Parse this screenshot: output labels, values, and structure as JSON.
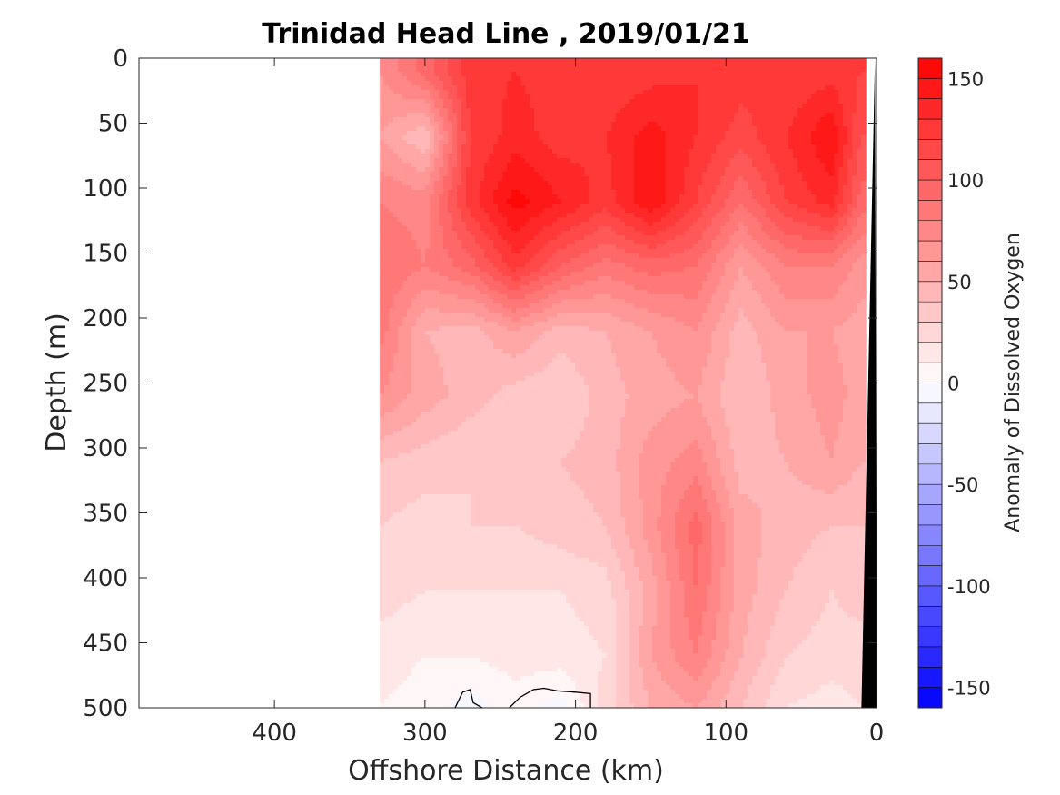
{
  "chart_data": {
    "type": "heatmap",
    "subtype": "filled-contour section",
    "title": "Trinidad Head Line , 2019/01/21",
    "xlabel": "Offshore Distance (km)",
    "ylabel": "Depth (m)",
    "xlim": [
      490,
      0
    ],
    "x_reversed": true,
    "ylim": [
      0,
      500
    ],
    "y_reversed": true,
    "x_ticks": [
      400,
      300,
      200,
      100,
      0
    ],
    "y_ticks": [
      0,
      50,
      100,
      150,
      200,
      250,
      300,
      350,
      400,
      450,
      500
    ],
    "colorbar": {
      "label": "Anomaly of Dissolved Oxygen",
      "range": [
        -160,
        160
      ],
      "level_step": 10,
      "ticks": [
        -150,
        -100,
        -50,
        0,
        50,
        100,
        150
      ],
      "colormap": "blue-white-red",
      "low_color": "#0000ff",
      "mid_color": "#ffffff",
      "high_color": "#ff0000"
    },
    "data_extent_x_km": [
      330,
      10
    ],
    "bathymetry_color": "#000000",
    "bathymetry": {
      "distance_km": [
        10,
        1,
        0
      ],
      "depth_m": [
        500,
        0,
        500
      ]
    },
    "grid_x_km": [
      330,
      300,
      270,
      240,
      210,
      180,
      150,
      120,
      90,
      60,
      30,
      10
    ],
    "grid_depth_m": [
      10,
      60,
      110,
      160,
      210,
      260,
      310,
      360,
      410,
      460,
      500
    ],
    "anomaly_grid": [
      [
        70,
        95,
        125,
        130,
        125,
        120,
        125,
        130,
        125,
        120,
        125,
        120
      ],
      [
        60,
        40,
        120,
        135,
        125,
        130,
        145,
        130,
        115,
        130,
        150,
        110
      ],
      [
        80,
        75,
        125,
        155,
        140,
        125,
        150,
        120,
        90,
        120,
        135,
        95
      ],
      [
        90,
        80,
        95,
        125,
        100,
        85,
        95,
        90,
        60,
        80,
        80,
        65
      ],
      [
        85,
        50,
        45,
        60,
        45,
        50,
        60,
        70,
        45,
        60,
        60,
        55
      ],
      [
        70,
        55,
        45,
        35,
        30,
        45,
        55,
        60,
        40,
        55,
        65,
        55
      ],
      [
        40,
        35,
        30,
        35,
        40,
        45,
        65,
        75,
        45,
        50,
        60,
        50
      ],
      [
        30,
        25,
        30,
        30,
        35,
        40,
        65,
        95,
        55,
        45,
        40,
        40
      ],
      [
        25,
        20,
        20,
        20,
        20,
        25,
        55,
        90,
        55,
        40,
        30,
        35
      ],
      [
        15,
        10,
        10,
        15,
        15,
        20,
        60,
        80,
        50,
        30,
        25,
        25
      ],
      [
        10,
        5,
        -5,
        5,
        -5,
        25,
        50,
        60,
        40,
        20,
        15,
        20
      ]
    ],
    "zero_contours": [
      {
        "x_km": [
          262,
          268,
          270,
          275,
          280
        ],
        "depth_m": [
          500,
          496,
          486,
          488,
          500
        ]
      },
      {
        "x_km": [
          244,
          237,
          228,
          221,
          212,
          200,
          190,
          190
        ],
        "depth_m": [
          500,
          492,
          486,
          485,
          487,
          488,
          489,
          500
        ]
      }
    ]
  }
}
